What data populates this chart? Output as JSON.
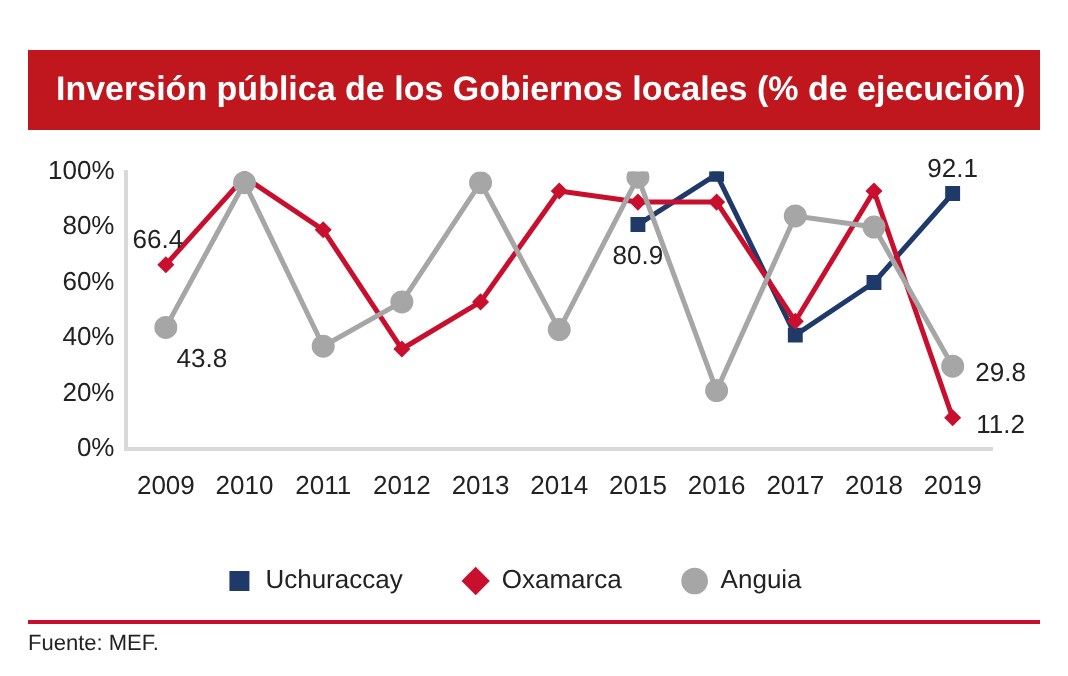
{
  "chart_data": {
    "type": "line",
    "title": "Inversión pública de los Gobiernos locales (% de ejecución)",
    "categories": [
      "2009",
      "2010",
      "2011",
      "2012",
      "2013",
      "2014",
      "2015",
      "2016",
      "2017",
      "2018",
      "2019"
    ],
    "series": [
      {
        "name": "Uchuraccay",
        "color": "#1f3a68",
        "marker": "square",
        "values": [
          null,
          null,
          null,
          null,
          null,
          null,
          80.9,
          99,
          41,
          60,
          92.1
        ],
        "value_labels": [
          null,
          null,
          null,
          null,
          null,
          null,
          "80.9",
          null,
          null,
          null,
          "92.1"
        ]
      },
      {
        "name": "Oxamarca",
        "color": "#c8102e",
        "marker": "diamond",
        "values": [
          66.4,
          98,
          79,
          36,
          53,
          93,
          89,
          89,
          46,
          93,
          11.2
        ],
        "value_labels": [
          "66.4",
          null,
          null,
          null,
          null,
          null,
          null,
          null,
          null,
          null,
          "11.2"
        ]
      },
      {
        "name": "Anguia",
        "color": "#a6a6a6",
        "marker": "circle",
        "values": [
          43.8,
          96,
          37,
          53,
          96,
          43,
          98,
          21,
          84,
          80,
          29.8
        ],
        "value_labels": [
          "43.8",
          null,
          null,
          null,
          null,
          null,
          null,
          null,
          null,
          null,
          "29.8"
        ]
      }
    ],
    "ylim": [
      0,
      100
    ],
    "yticks": [
      {
        "value": 0,
        "label": "0%"
      },
      {
        "value": 20,
        "label": "20%"
      },
      {
        "value": 40,
        "label": "40%"
      },
      {
        "value": 60,
        "label": "60%"
      },
      {
        "value": 80,
        "label": "80%"
      },
      {
        "value": 100,
        "label": "100%"
      }
    ],
    "grid": false,
    "legend": "bottom",
    "annotations": [
      "Fuente: MEF."
    ]
  }
}
